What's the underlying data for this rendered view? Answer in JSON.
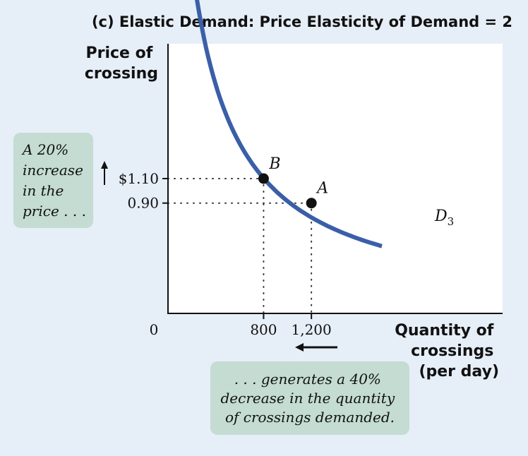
{
  "chart_data": {
    "type": "line",
    "title": "(c) Elastic Demand: Price Elasticity of Demand = 2",
    "ylabel": [
      "Price of",
      "crossing"
    ],
    "xlabel": [
      "Quantity of",
      "crossings",
      "(per day)"
    ],
    "origin_label": "0",
    "xlim": [
      0,
      2800
    ],
    "ylim": [
      0,
      2.2
    ],
    "x_ticks": [
      {
        "value": 800,
        "label": "800"
      },
      {
        "value": 1200,
        "label": "1,200"
      }
    ],
    "y_ticks": [
      {
        "value": 1.1,
        "label": "$1.10"
      },
      {
        "value": 0.9,
        "label": "0.90"
      }
    ],
    "series": [
      {
        "name": "D3",
        "curve": {
          "constant": 1081.08,
          "offset": 180,
          "x_start": 240,
          "x_end": 1790
        }
      }
    ],
    "points": [
      {
        "label": "B",
        "x": 800,
        "y": 1.1
      },
      {
        "label": "A",
        "x": 1200,
        "y": 0.9
      }
    ],
    "curve_label": {
      "text": "D",
      "sub": "3"
    },
    "annotations": {
      "price_note": [
        "A 20%",
        "increase",
        "in the",
        "price . . ."
      ],
      "quantity_note": [
        ". . . generates a 40%",
        "decrease in the quantity",
        "of crossings demanded."
      ]
    },
    "colors": {
      "background": "#e6eef8",
      "curve": "#3a5fa8",
      "note_box": "#c4dcd2",
      "plot_bg": "#ffffff"
    },
    "grid": false
  }
}
